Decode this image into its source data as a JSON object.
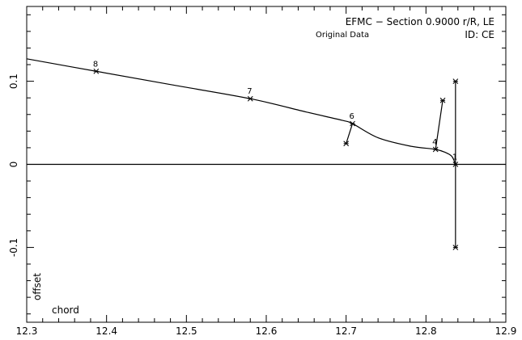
{
  "chart_data": {
    "type": "line",
    "title": "EFMC − Section 0.9000 r/R, LE",
    "subtitle": "Original Data",
    "id_label": "ID: CE",
    "xlabel": "chord",
    "ylabel": "offset",
    "xlim": [
      12.3,
      12.9
    ],
    "ylim": [
      -0.19,
      0.19
    ],
    "grid": false,
    "x_ticks": [
      12.3,
      12.4,
      12.5,
      12.6,
      12.7,
      12.8,
      12.9
    ],
    "x_tick_labels": [
      "12.3",
      "12.4",
      "12.5",
      "12.6",
      "12.7",
      "12.8",
      "12.9"
    ],
    "y_ticks": [
      -0.1,
      0,
      0.1
    ],
    "y_tick_labels": [
      "-0.1",
      "0",
      "0.1"
    ],
    "curve": {
      "x": [
        12.3,
        12.387,
        12.48,
        12.58,
        12.65,
        12.695,
        12.708,
        12.74,
        12.78,
        12.812,
        12.825,
        12.832,
        12.835,
        12.837
      ],
      "y": [
        0.127,
        0.112,
        0.096,
        0.079,
        0.063,
        0.053,
        0.049,
        0.032,
        0.022,
        0.018,
        0.014,
        0.01,
        0.005,
        0.0
      ]
    },
    "baseline_y": 0,
    "points": [
      {
        "label": "8",
        "x": 12.387,
        "y": 0.112
      },
      {
        "label": "7",
        "x": 12.58,
        "y": 0.079
      },
      {
        "label": "6",
        "x": 12.708,
        "y": 0.049
      },
      {
        "label": "4",
        "x": 12.812,
        "y": 0.018
      },
      {
        "label": "1",
        "x": 12.837,
        "y": 0.0
      }
    ],
    "normals": [
      {
        "x1": 12.708,
        "y1": 0.049,
        "x2": 12.7,
        "y2": 0.025
      },
      {
        "x1": 12.812,
        "y1": 0.018,
        "x2": 12.821,
        "y2": 0.077
      },
      {
        "x1": 12.837,
        "y1": 0.1,
        "x2": 12.837,
        "y2": -0.1
      }
    ],
    "normal_markers": [
      {
        "x": 12.7,
        "y": 0.025
      },
      {
        "x": 12.821,
        "y": 0.077
      },
      {
        "x": 12.837,
        "y": 0.1
      },
      {
        "x": 12.837,
        "y": -0.1
      }
    ]
  }
}
